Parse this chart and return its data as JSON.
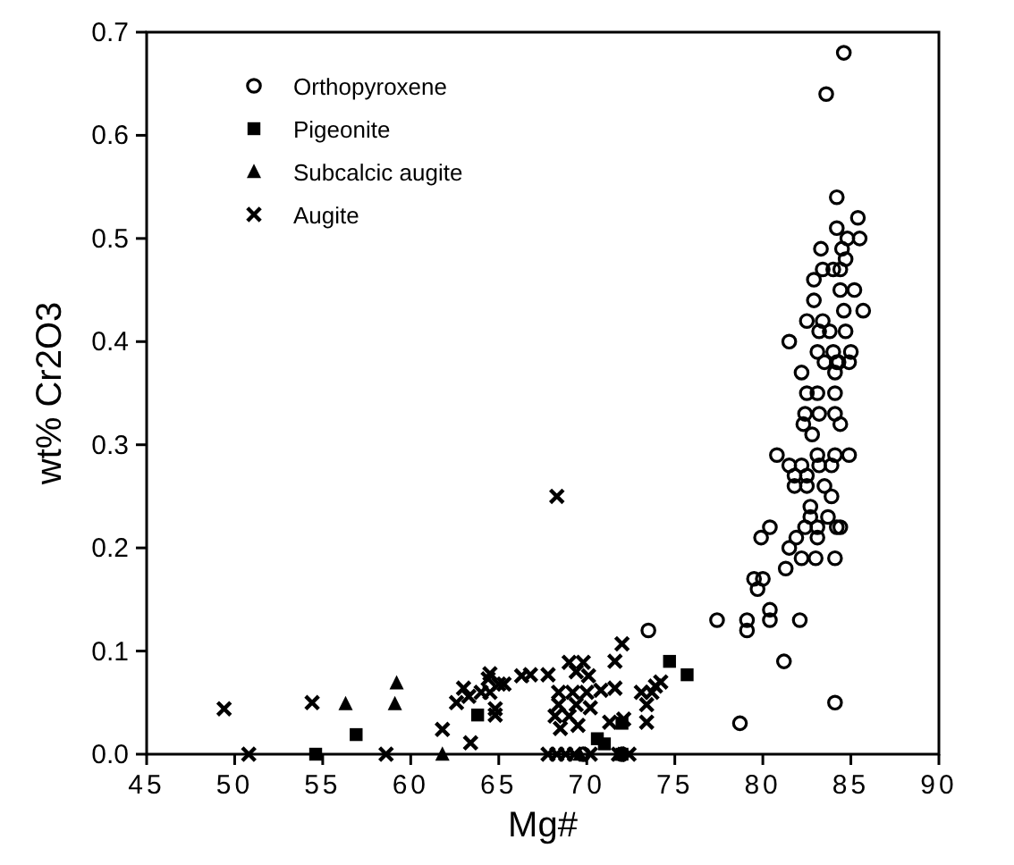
{
  "chart_data": {
    "type": "scatter",
    "xlabel": "Mg#",
    "ylabel": "wt% Cr2O3",
    "xlim": [
      45,
      90
    ],
    "xticks": [
      45,
      50,
      55,
      60,
      65,
      70,
      75,
      80,
      85,
      90
    ],
    "ylim": [
      0,
      0.7
    ],
    "yticks": [
      {
        "value": 0,
        "label": "0.0"
      },
      0.1,
      0.2,
      0.3,
      0.4,
      0.5,
      0.6,
      0.7
    ],
    "legend": "top left",
    "series": [
      {
        "name": "Orthopyroxene",
        "color": "#000000",
        "marker": "circle",
        "x": [
          84.6,
          83.6,
          84.2,
          85.4,
          84.2,
          84.8,
          85.5,
          84.5,
          83.3,
          84.7,
          84.0,
          83.4,
          84.4,
          82.9,
          84.4,
          85.2,
          82.9,
          84.6,
          85.7,
          82.5,
          83.4,
          83.2,
          83.8,
          84.7,
          81.5,
          83.1,
          84.0,
          85.0,
          83.5,
          84.3,
          82.2,
          84.2,
          84.9,
          84.1,
          82.5,
          83.1,
          84.1,
          82.4,
          83.2,
          84.1,
          82.3,
          82.8,
          84.4,
          80.8,
          81.5,
          82.2,
          83.1,
          84.1,
          84.9,
          81.8,
          82.5,
          83.2,
          83.9,
          81.8,
          82.5,
          83.5,
          83.9,
          82.7,
          82.7,
          83.7,
          84.4,
          82.4,
          83.1,
          83.1,
          84.2,
          80.4,
          79.9,
          81.9,
          81.5,
          82.2,
          83.0,
          84.1,
          81.3,
          79.5,
          80.0,
          79.7,
          77.4,
          79.1,
          79.1,
          80.4,
          80.4,
          82.1,
          81.2,
          84.1,
          78.7,
          73.5,
          69.8,
          72.0
        ],
        "values": [
          0.68,
          0.64,
          0.54,
          0.52,
          0.51,
          0.5,
          0.5,
          0.49,
          0.49,
          0.48,
          0.47,
          0.47,
          0.47,
          0.46,
          0.45,
          0.45,
          0.44,
          0.43,
          0.43,
          0.42,
          0.42,
          0.41,
          0.41,
          0.41,
          0.4,
          0.39,
          0.39,
          0.39,
          0.38,
          0.38,
          0.37,
          0.38,
          0.38,
          0.37,
          0.35,
          0.35,
          0.35,
          0.33,
          0.33,
          0.33,
          0.32,
          0.31,
          0.32,
          0.29,
          0.28,
          0.28,
          0.29,
          0.29,
          0.29,
          0.27,
          0.27,
          0.28,
          0.28,
          0.26,
          0.26,
          0.26,
          0.25,
          0.24,
          0.23,
          0.23,
          0.22,
          0.22,
          0.22,
          0.21,
          0.22,
          0.22,
          0.21,
          0.21,
          0.2,
          0.19,
          0.19,
          0.19,
          0.18,
          0.17,
          0.17,
          0.16,
          0.13,
          0.13,
          0.12,
          0.14,
          0.13,
          0.13,
          0.09,
          0.05,
          0.03,
          0.12,
          0.0,
          0.0
        ]
      },
      {
        "name": "Pigeonite",
        "color": "#000000",
        "marker": "square",
        "x": [
          54.6,
          56.9,
          63.8,
          70.6,
          71.0,
          72.0,
          74.7,
          75.7,
          72.0
        ],
        "values": [
          0.0,
          0.019,
          0.038,
          0.015,
          0.01,
          0.03,
          0.09,
          0.077,
          0.0
        ]
      },
      {
        "name": "Subcalcic augite",
        "color": "#000000",
        "marker": "triangle",
        "x": [
          56.3,
          59.2,
          59.1,
          61.8,
          69.6,
          71.8
        ],
        "values": [
          0.049,
          0.069,
          0.049,
          0.0,
          0.0,
          0.0
        ]
      },
      {
        "name": "Augite",
        "color": "#000000",
        "marker": "cross",
        "x": [
          49.4,
          50.8,
          54.4,
          58.6,
          61.8,
          63.4,
          62.6,
          63.0,
          63.3,
          64.5,
          65.0,
          64.8,
          64.8,
          66.3,
          64.4,
          64.0,
          64.5,
          65.3,
          66.8,
          67.8,
          69.0,
          69.8,
          69.4,
          70.1,
          68.4,
          69.2,
          70.0,
          70.8,
          71.6,
          68.4,
          69.4,
          70.2,
          68.2,
          69.0,
          68.5,
          69.5,
          71.3,
          72.1,
          71.6,
          72.0,
          73.1,
          73.7,
          73.4,
          73.4,
          74.2,
          73.9,
          68.3,
          67.8,
          68.3,
          68.8,
          69.3,
          70.2,
          71.8,
          72.4
        ],
        "values": [
          0.044,
          0.0,
          0.05,
          0.0,
          0.024,
          0.011,
          0.05,
          0.064,
          0.056,
          0.078,
          0.068,
          0.044,
          0.038,
          0.076,
          0.073,
          0.06,
          0.06,
          0.068,
          0.077,
          0.077,
          0.089,
          0.089,
          0.08,
          0.076,
          0.06,
          0.06,
          0.06,
          0.062,
          0.064,
          0.048,
          0.048,
          0.045,
          0.037,
          0.037,
          0.025,
          0.028,
          0.031,
          0.034,
          0.09,
          0.107,
          0.06,
          0.06,
          0.048,
          0.031,
          0.07,
          0.066,
          0.25,
          0.0,
          0.0,
          0.0,
          0.0,
          0.0,
          0.0,
          0.0
        ]
      }
    ]
  }
}
